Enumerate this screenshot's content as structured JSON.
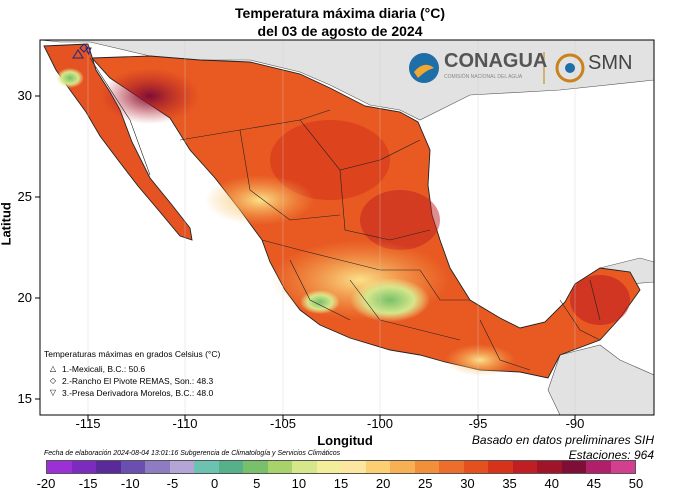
{
  "title_line1": "Temperatura máxima diaria (°C)",
  "title_line2": "del 03 de agosto de 2024",
  "xlabel": "Longitud",
  "ylabel": "Latitud",
  "x_ticks": [
    "-115",
    "-110",
    "-105",
    "-100",
    "-95",
    "-90"
  ],
  "y_ticks": [
    "30",
    "25",
    "20",
    "15"
  ],
  "legend": {
    "title": "Temperaturas máximas en grados Celsius (°C)",
    "items": [
      {
        "symbol": "△",
        "text": "1.-Mexicali, B.C.: 50.6"
      },
      {
        "symbol": "◇",
        "text": "2.-Rancho El Pivote REMAS, Son.: 48.3"
      },
      {
        "symbol": "▽",
        "text": "3.-Presa Derivadora Morelos, B.C.: 48.0"
      }
    ]
  },
  "footnote": "Fecha de elaboración 2024-08-04 13:01:16 Subgerencia de Climatología y Servicios Climáticos",
  "source_line1": "Basado en datos preliminares SIH",
  "source_line2": "Estaciones:  964",
  "logo_conagua": "CONAGUA",
  "logo_conagua_sub": "COMISIÓN NACIONAL DEL AGUA",
  "logo_smn": "SMN",
  "colorbar": {
    "ticks": [
      "-20",
      "-15",
      "-10",
      "-5",
      "0",
      "5",
      "10",
      "15",
      "20",
      "25",
      "30",
      "35",
      "40",
      "45",
      "50"
    ],
    "colors": [
      "#9b30d6",
      "#7b2cbf",
      "#5a2a9a",
      "#6b4fb0",
      "#8e7cc3",
      "#b3a6d6",
      "#6cc2b0",
      "#56b08a",
      "#78c06a",
      "#a8d36a",
      "#d6e68a",
      "#f2ee9a",
      "#fde6a0",
      "#fbcf72",
      "#f7b052",
      "#f2903a",
      "#ec6e2a",
      "#e4511f",
      "#d6331a",
      "#c01e22",
      "#a0142a",
      "#7e0e36",
      "#b0206a",
      "#d23f8e"
    ]
  },
  "chart_data": {
    "type": "heatmap",
    "title": "Temperatura máxima diaria (°C) del 03 de agosto de 2024",
    "xlabel": "Longitud",
    "ylabel": "Latitud",
    "xlim": [
      -117.5,
      -86
    ],
    "ylim": [
      14,
      32.8
    ],
    "value_range": [
      -20,
      50
    ],
    "stations": [
      {
        "name": "Mexicali, B.C.",
        "value": 50.6
      },
      {
        "name": "Rancho El Pivote REMAS, Son.",
        "value": 48.3
      },
      {
        "name": "Presa Derivadora Morelos, B.C.",
        "value": 48.0
      }
    ]
  }
}
